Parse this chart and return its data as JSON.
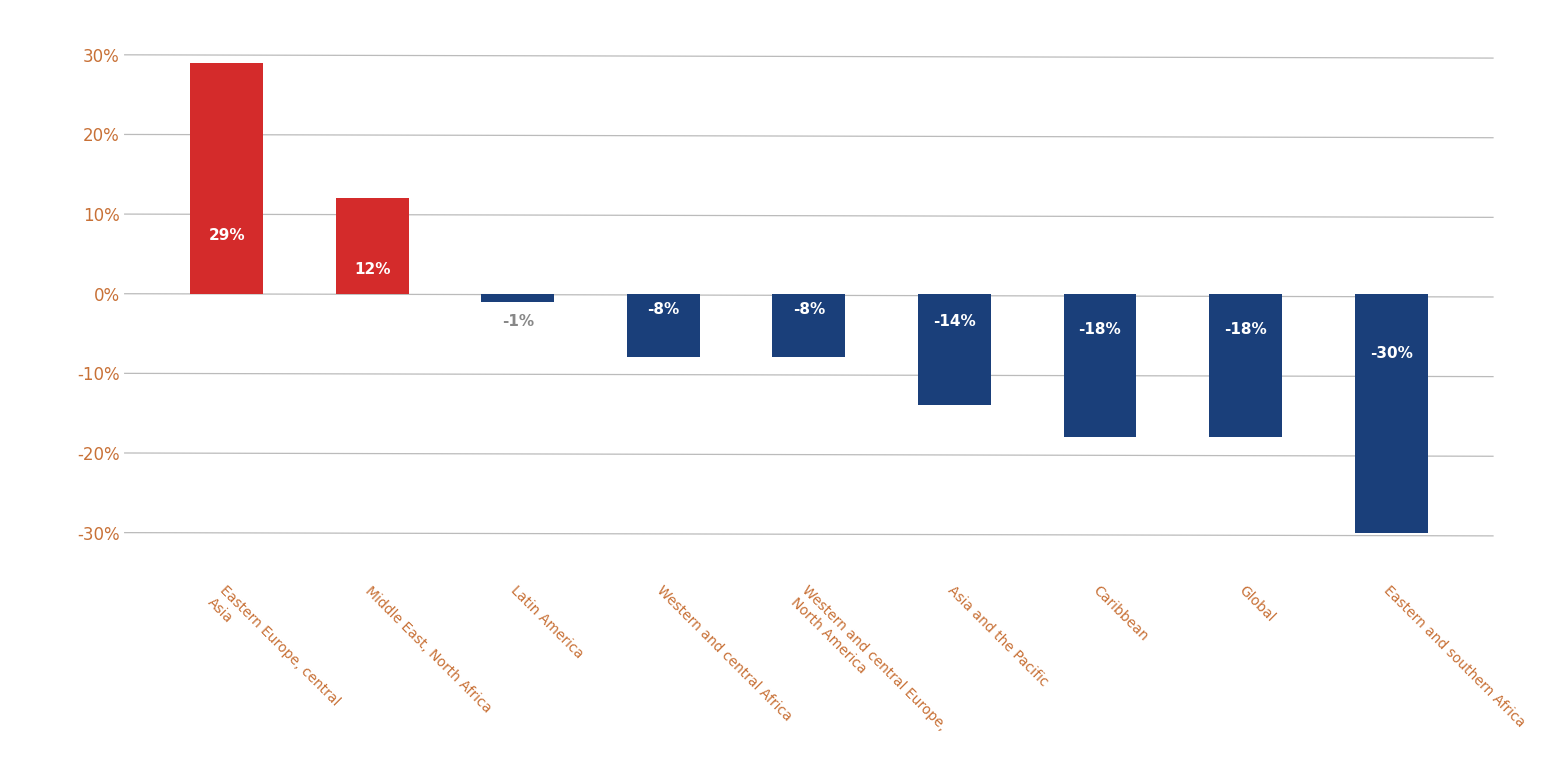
{
  "categories": [
    "Eastern Europe, central\nAsia",
    "Middle East, North Africa",
    "Latin America",
    "Western and central Africa",
    "Western and central Europe,\nNorth America",
    "Asia and the Pacific",
    "Caribbean",
    "Global",
    "Eastern and southern Africa"
  ],
  "values": [
    29,
    12,
    -1,
    -8,
    -8,
    -14,
    -18,
    -18,
    -30
  ],
  "bar_colors": [
    "#d42b2b",
    "#d42b2b",
    "#1a3f7a",
    "#1a3f7a",
    "#1a3f7a",
    "#1a3f7a",
    "#1a3f7a",
    "#1a3f7a",
    "#1a3f7a"
  ],
  "label_colors": [
    "white",
    "white",
    "#888888",
    "white",
    "white",
    "white",
    "white",
    "white",
    "white"
  ],
  "labels": [
    "29%",
    "12%",
    "-1%",
    "-8%",
    "-8%",
    "-14%",
    "-18%",
    "-18%",
    "-30%"
  ],
  "ylim": [
    -35,
    35
  ],
  "yticks": [
    -30,
    -20,
    -10,
    0,
    10,
    20,
    30
  ],
  "ytick_labels": [
    "-30%",
    "-20%",
    "-10%",
    "0%",
    "10%",
    "20%",
    "30%"
  ],
  "background_color": "#ffffff",
  "grid_color": "#bbbbbb",
  "label_fontsize": 11,
  "tick_fontsize": 12,
  "xtick_color": "#c87137",
  "ytick_color": "#c87137"
}
